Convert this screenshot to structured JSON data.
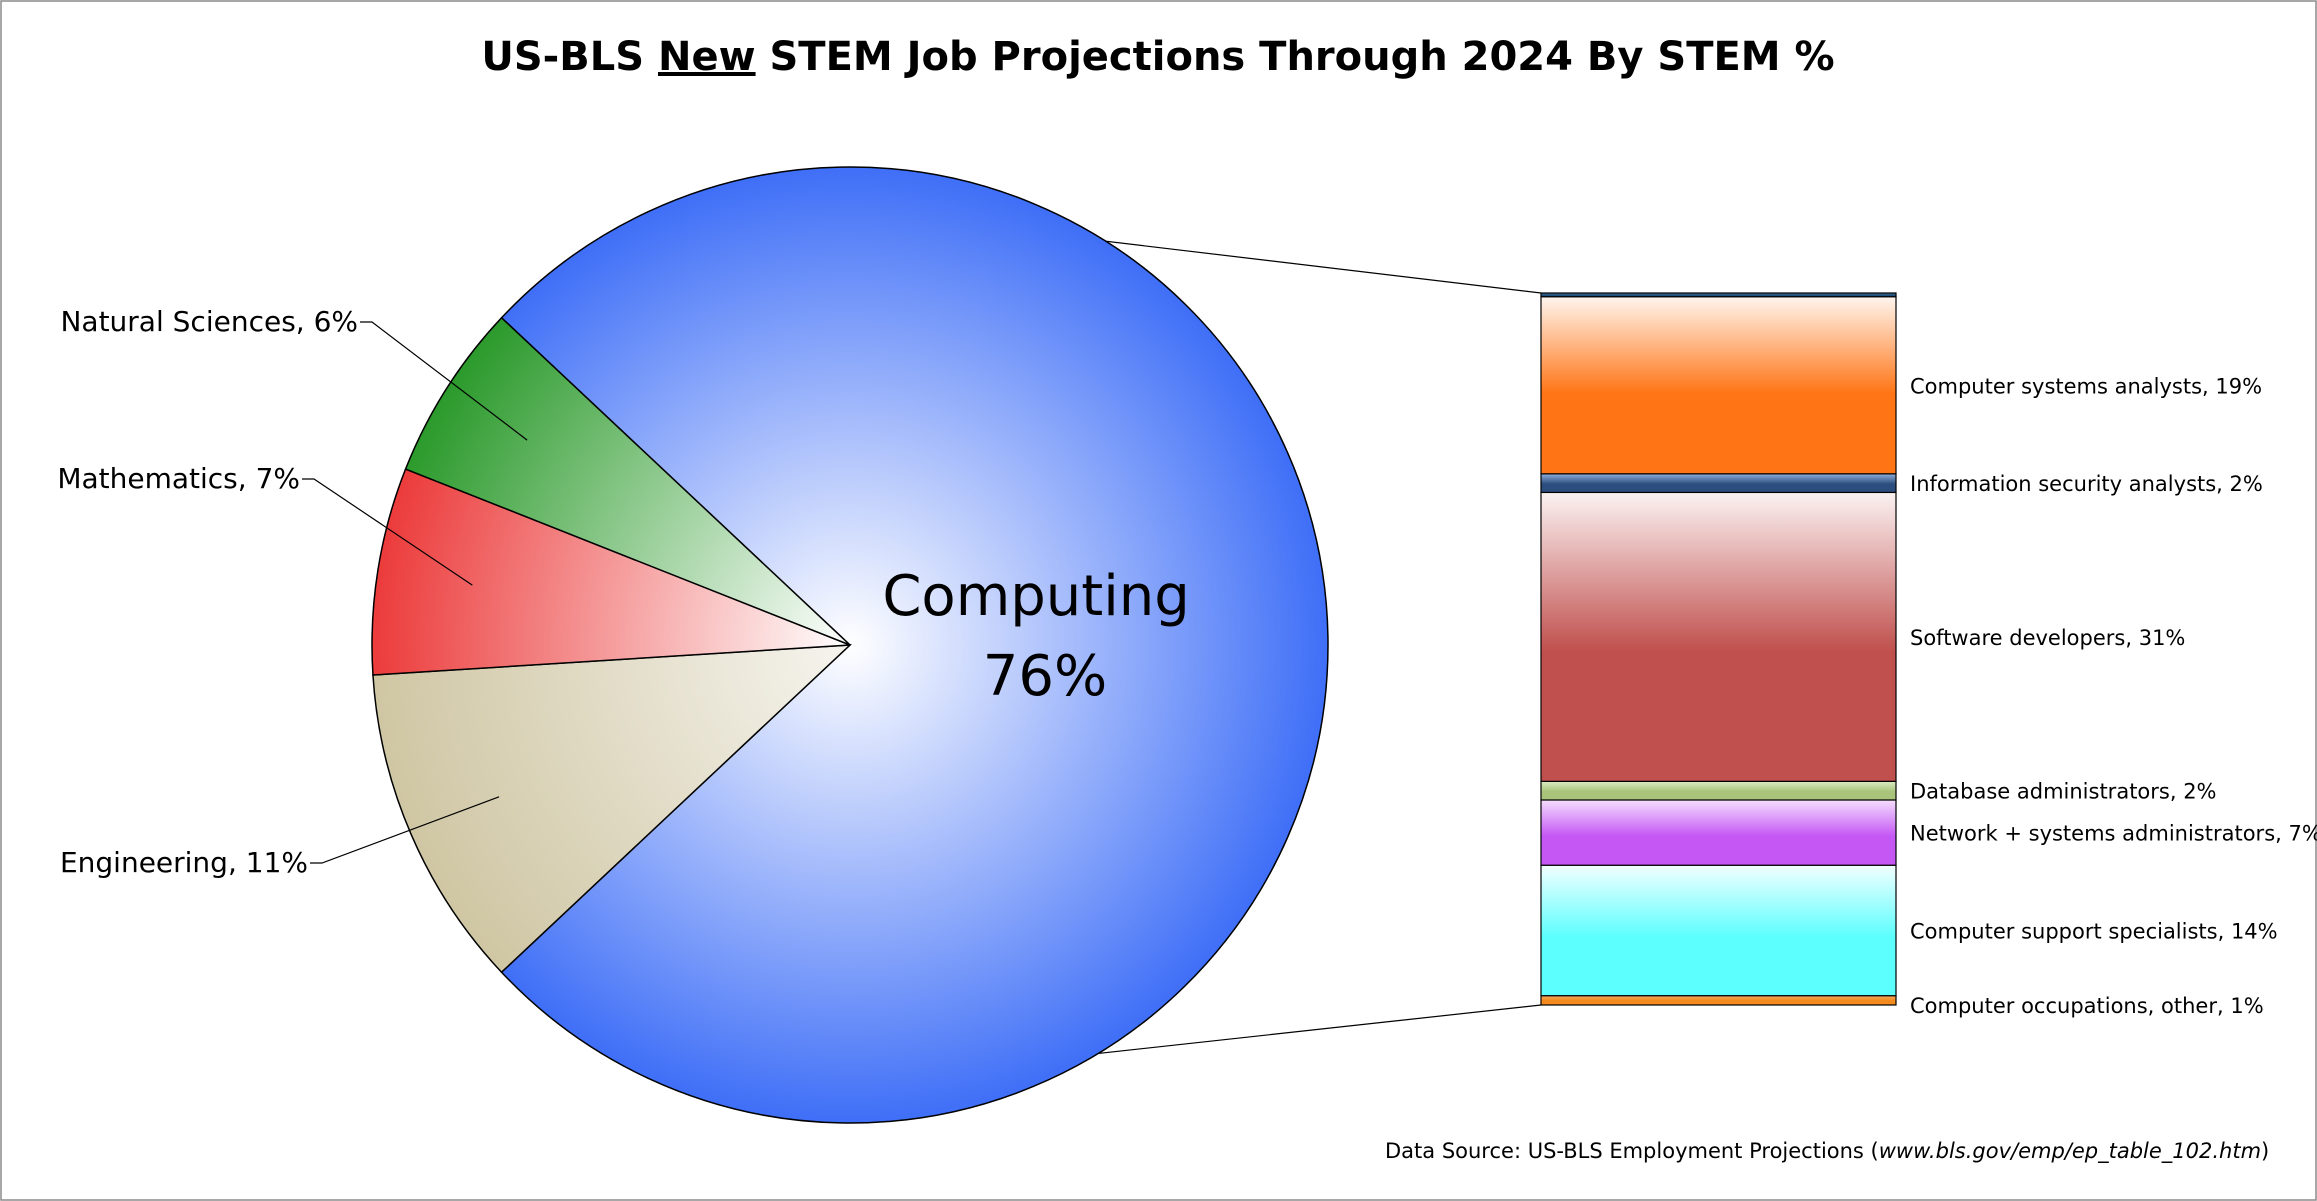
{
  "chart_data": {
    "type": "pie",
    "title": "US-BLS New STEM Job Projections Through 2024 By STEM %",
    "title_parts": [
      "US-BLS ",
      "New",
      " STEM Job Projections Through 2024 By STEM %"
    ],
    "slices": [
      {
        "name": "Computing",
        "value": 76,
        "label_line1": "Computing",
        "label_line2": "76%",
        "color": "#3f6ff7",
        "color_inner": "#ffffff"
      },
      {
        "name": "Engineering",
        "value": 11,
        "label": "Engineering, 11%",
        "color": "#cfc6a3",
        "color_inner": "#f6f4ee"
      },
      {
        "name": "Mathematics",
        "value": 7,
        "label": "Mathematics, 7%",
        "color": "#ec3b3b",
        "color_inner": "#ffffff"
      },
      {
        "name": "Natural Sciences",
        "value": 6,
        "label": "Natural Sciences, 6%",
        "color": "#2b9a2b",
        "color_inner": "#ffffff"
      }
    ],
    "breakdown_of": "Computing",
    "breakdown": [
      {
        "name": "Computer occupations, other",
        "value": 1,
        "label": "Computer occupations, other, 1%",
        "color": "#f28a1d",
        "color_inner": "#f7a860"
      },
      {
        "name": "Computer support specialists",
        "value": 14,
        "label": "Computer support specialists, 14%",
        "color": "#5cfefe",
        "color_inner": "#f2ffff"
      },
      {
        "name": "Network + systems administrators",
        "value": 7,
        "label": "Network + systems administrators, 7%",
        "color": "#c558f5",
        "color_inner": "#f4ddfd"
      },
      {
        "name": "Database administrators",
        "value": 2,
        "label": "Database administrators, 2%",
        "color": "#a9c47a",
        "color_inner": "#dcebc4"
      },
      {
        "name": "Software developers",
        "value": 31,
        "label": "Software developers, 31%",
        "color": "#c0504d",
        "color_inner": "#fbf2f2"
      },
      {
        "name": "Information security analysts",
        "value": 2,
        "label": "Information security analysts, 2%",
        "color": "#2c4e7e",
        "color_inner": "#8fb0dc"
      },
      {
        "name": "Computer systems analysts",
        "value": 19,
        "label": "Computer systems analysts, 19%",
        "color": "#ff7414",
        "color_inner": "#fff5ee"
      },
      {
        "name": "",
        "value": 0.4,
        "label": "",
        "color": "#1f4e79",
        "color_inner": "#4a7aa8"
      }
    ],
    "source_prefix": "Data Source: US-BLS Employment Projections (",
    "source_url": "www.bls.gov/emp/ep_table_102.htm",
    "source_suffix": ")",
    "legend": "none"
  }
}
